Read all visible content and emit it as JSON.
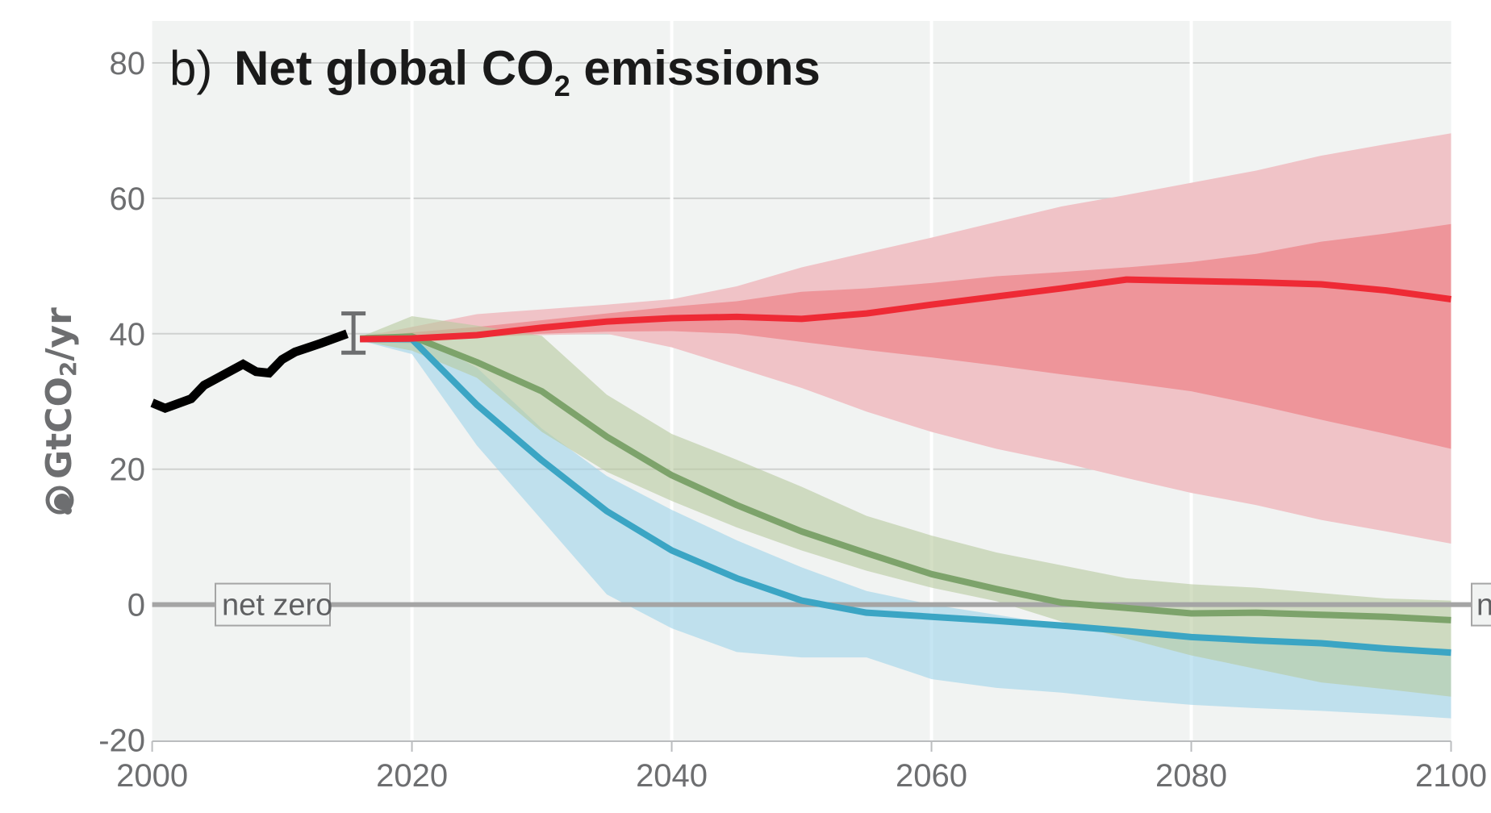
{
  "chart_data": {
    "type": "line",
    "title_prefix": "b)",
    "title": "Net global CO",
    "title_sub": "2",
    "title_suffix": " emissions",
    "ylabel": "GtCO",
    "ylabel_sub": "2",
    "ylabel_suffix": "/yr",
    "ylabel_icon": "co2-cloud-icon",
    "xlim": [
      2000,
      2100
    ],
    "ylim": [
      -20,
      85
    ],
    "xticks": [
      2000,
      2020,
      2040,
      2060,
      2080,
      2100
    ],
    "yticks": [
      -20,
      0,
      20,
      40,
      60,
      80
    ],
    "grid": true,
    "reference_line": {
      "value": 0,
      "label": "net zero",
      "label_right": "n"
    },
    "colors": {
      "background": "#f1f3f2",
      "historical": "#000000",
      "red": "#ee2a35",
      "red_band_outer": "#f0c3c7",
      "red_band_inner": "#ee959a",
      "green": "#7da36b",
      "green_band": "#b7c99e",
      "blue": "#3ba5c4",
      "blue_band": "#9fd4ea",
      "zero_line": "#a5a5a5",
      "error_bar": "#6d6e70"
    },
    "historical": {
      "x": [
        2000,
        2001,
        2003,
        2004,
        2007,
        2008,
        2009,
        2010,
        2011,
        2013,
        2015
      ],
      "y": [
        29.8,
        29.0,
        30.4,
        32.4,
        35.5,
        34.4,
        34.2,
        36.2,
        37.3,
        38.6,
        40.0
      ]
    },
    "error_bar": {
      "x": 2015.5,
      "low": 37.2,
      "high": 43.0
    },
    "bands": [
      {
        "name": "red-outer",
        "color": "red_band_outer",
        "x": [
          2016,
          2020,
          2025,
          2030,
          2035,
          2040,
          2045,
          2050,
          2055,
          2060,
          2065,
          2070,
          2075,
          2080,
          2085,
          2090,
          2095,
          2100
        ],
        "upper": [
          39.5,
          41,
          42.9,
          43.6,
          44.3,
          45.1,
          47,
          49.8,
          52,
          54.2,
          56.5,
          58.8,
          60.5,
          62.3,
          64.1,
          66.3,
          68,
          69.6
        ],
        "lower": [
          39,
          38.5,
          39.5,
          39.8,
          40,
          38,
          35,
          32,
          28.5,
          25.5,
          23,
          21,
          18.7,
          16.5,
          14.7,
          12.5,
          10.8,
          9
        ]
      },
      {
        "name": "red-inner",
        "color": "red_band_inner",
        "x": [
          2016,
          2020,
          2025,
          2030,
          2035,
          2040,
          2045,
          2050,
          2055,
          2060,
          2065,
          2070,
          2075,
          2080,
          2085,
          2090,
          2095,
          2100
        ],
        "upper": [
          39.3,
          40.2,
          41,
          42,
          43,
          44,
          44.8,
          46.2,
          46.7,
          47.5,
          48.5,
          49.1,
          49.8,
          50.6,
          51.8,
          53.6,
          54.8,
          56.2
        ],
        "lower": [
          39.1,
          39,
          39.5,
          40,
          40.3,
          40.4,
          40,
          38.8,
          37.6,
          36.5,
          35.3,
          34,
          32.8,
          31.5,
          29.5,
          27.3,
          25.2,
          23
        ]
      },
      {
        "name": "blue",
        "color": "blue_band",
        "x": [
          2016,
          2020,
          2025,
          2030,
          2035,
          2040,
          2045,
          2050,
          2055,
          2060,
          2065,
          2070,
          2075,
          2080,
          2085,
          2090,
          2095,
          2100
        ],
        "upper": [
          39.2,
          40,
          35,
          26,
          19,
          14,
          9.5,
          5.5,
          2,
          0,
          -1.5,
          -3,
          -4,
          -5,
          -5.5,
          -5.8,
          -6.2,
          -6.5
        ],
        "lower": [
          39,
          37,
          23.5,
          12.5,
          1.5,
          -3.5,
          -7,
          -7.8,
          -7.8,
          -11,
          -12.3,
          -13,
          -14,
          -14.8,
          -15.3,
          -15.7,
          -16.2,
          -16.8
        ]
      },
      {
        "name": "green",
        "color": "green_band",
        "x": [
          2016,
          2020,
          2025,
          2030,
          2035,
          2040,
          2045,
          2050,
          2055,
          2060,
          2065,
          2070,
          2075,
          2080,
          2085,
          2090,
          2095,
          2100
        ],
        "upper": [
          39.5,
          42.6,
          41.2,
          39.7,
          31,
          25.2,
          21.4,
          17.4,
          13.1,
          10.2,
          7.7,
          5.8,
          3.9,
          3,
          2.5,
          1.7,
          0.9,
          0.6
        ],
        "lower": [
          39,
          37.5,
          33.5,
          25.5,
          19.6,
          15.3,
          11.4,
          8,
          5,
          2.5,
          0.5,
          -2.5,
          -5,
          -7.5,
          -9.5,
          -11.5,
          -12.5,
          -13.6
        ]
      }
    ],
    "series": [
      {
        "name": "blue",
        "color": "blue",
        "x": [
          2016,
          2020,
          2025,
          2030,
          2035,
          2040,
          2045,
          2050,
          2055,
          2060,
          2065,
          2070,
          2075,
          2080,
          2085,
          2090,
          2095,
          2100
        ],
        "y": [
          39.2,
          39.2,
          29.5,
          21.3,
          13.8,
          8,
          3.9,
          0.6,
          -1.2,
          -1.8,
          -2.4,
          -3.1,
          -3.9,
          -4.8,
          -5.3,
          -5.7,
          -6.5,
          -7.1
        ]
      },
      {
        "name": "green",
        "color": "green",
        "x": [
          2016,
          2020,
          2025,
          2030,
          2035,
          2040,
          2045,
          2050,
          2055,
          2060,
          2065,
          2070,
          2075,
          2080,
          2085,
          2090,
          2095,
          2100
        ],
        "y": [
          39.3,
          39.6,
          35.8,
          31.5,
          24.8,
          19.1,
          14.7,
          10.8,
          7.6,
          4.5,
          2.3,
          0.3,
          -0.5,
          -1.3,
          -1.2,
          -1.5,
          -1.8,
          -2.3
        ]
      },
      {
        "name": "red",
        "color": "red",
        "x": [
          2016,
          2020,
          2025,
          2030,
          2035,
          2040,
          2045,
          2050,
          2055,
          2060,
          2065,
          2070,
          2075,
          2080,
          2085,
          2090,
          2095,
          2100
        ],
        "y": [
          39.2,
          39.3,
          39.8,
          40.9,
          41.8,
          42.3,
          42.5,
          42.2,
          43,
          44.3,
          45.5,
          46.7,
          48,
          47.8,
          47.6,
          47.3,
          46.4,
          45.1
        ]
      }
    ]
  }
}
